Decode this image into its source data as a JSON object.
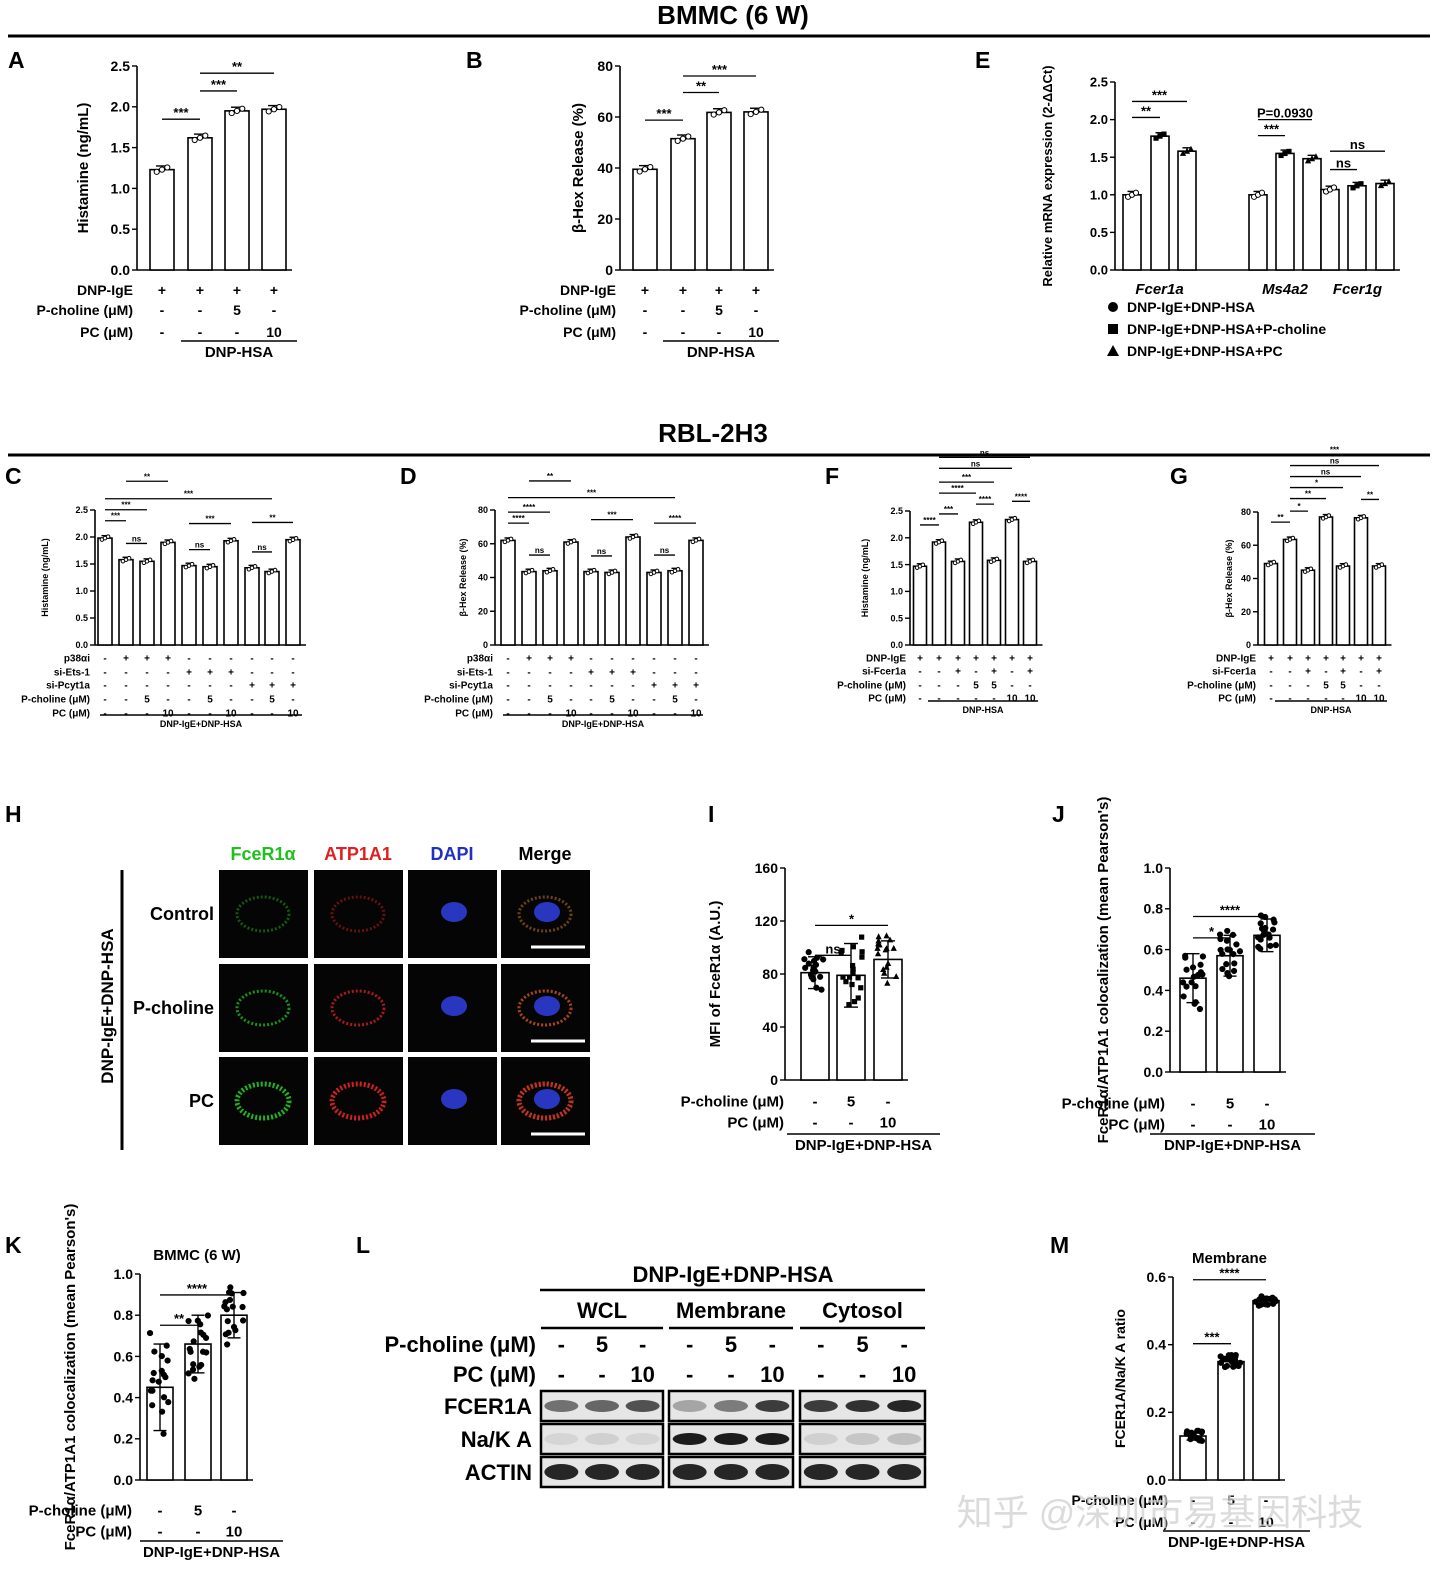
{
  "headers": {
    "bmmc": "BMMC (6 W)",
    "rbl": "RBL-2H3"
  },
  "panel_letters": [
    "A",
    "B",
    "E",
    "C",
    "D",
    "F",
    "G",
    "H",
    "I",
    "J",
    "K",
    "L",
    "M"
  ],
  "watermark": "知乎 @深圳市易基因科技",
  "colors": {
    "green": "#20c020",
    "red": "#e02020",
    "blue": "#2030c0",
    "black": "#000000",
    "bar_fill": "#ffffff"
  },
  "legend_e": {
    "items": [
      {
        "marker": "circle",
        "label": "DNP-IgE+DNP-HSA"
      },
      {
        "marker": "square",
        "label": "DNP-IgE+DNP-HSA+P-choline"
      },
      {
        "marker": "triangle",
        "label": "DNP-IgE+DNP-HSA+PC"
      }
    ]
  },
  "micro": {
    "columns": [
      "FceR1α",
      "ATP1A1",
      "DAPI",
      "Merge"
    ],
    "column_colors": [
      "#20c020",
      "#e02020",
      "#2030c0",
      "#000000"
    ],
    "rows": [
      "Control",
      "P-choline",
      "PC"
    ],
    "side_label": "DNP-IgE+DNP-HSA"
  },
  "blot": {
    "top": "DNP-IgE+DNP-HSA",
    "groups": [
      "WCL",
      "Membrane",
      "Cytosol"
    ],
    "pcholine_label": "P-choline (μM)",
    "pc_label": "PC (μM)",
    "pcholine": [
      "-",
      "5",
      "-"
    ],
    "pc": [
      "-",
      "-",
      "10"
    ],
    "bands": [
      "FCER1A",
      "Na/K A",
      "ACTIN"
    ]
  },
  "chart_data": [
    {
      "id": "A",
      "type": "bar",
      "ylabel": "Histamine (ng/mL)",
      "ylim": [
        0,
        2.5
      ],
      "ticks": [
        "0.0",
        "0.5",
        "1.0",
        "1.5",
        "2.0",
        "2.5"
      ],
      "values": [
        1.23,
        1.62,
        1.95,
        1.97
      ],
      "rows": [
        {
          "label": "DNP-IgE",
          "cells": [
            "+",
            "+",
            "+",
            "+"
          ]
        },
        {
          "label": "P-choline (μM)",
          "cells": [
            "-",
            "-",
            "5",
            "-"
          ]
        },
        {
          "label": "PC (μM)",
          "cells": [
            "-",
            "-",
            "-",
            "10"
          ]
        }
      ],
      "group_label": "DNP-HSA",
      "sig": [
        {
          "label": "***",
          "from": 0,
          "to": 1
        },
        {
          "label": "***",
          "from": 1,
          "to": 2
        },
        {
          "label": "**",
          "from": 1,
          "to": 3
        }
      ]
    },
    {
      "id": "B",
      "type": "bar",
      "ylabel": "β-Hex Release (%)",
      "ylim": [
        0,
        80
      ],
      "ticks": [
        "0",
        "20",
        "40",
        "60",
        "80"
      ],
      "values": [
        39.5,
        51.5,
        61.8,
        62.0
      ],
      "rows": [
        {
          "label": "DNP-IgE",
          "cells": [
            "+",
            "+",
            "+",
            "+"
          ]
        },
        {
          "label": "P-choline (μM)",
          "cells": [
            "-",
            "-",
            "5",
            "-"
          ]
        },
        {
          "label": "PC (μM)",
          "cells": [
            "-",
            "-",
            "-",
            "10"
          ]
        }
      ],
      "group_label": "DNP-HSA",
      "sig": [
        {
          "label": "***",
          "from": 0,
          "to": 1
        },
        {
          "label": "**",
          "from": 1,
          "to": 2
        },
        {
          "label": "***",
          "from": 1,
          "to": 3
        }
      ]
    },
    {
      "id": "E",
      "type": "bar",
      "ylabel": "Relative mRNA expression (2-ΔΔCt)",
      "ylim": [
        0,
        2.5
      ],
      "ticks": [
        "0.0",
        "0.5",
        "1.0",
        "1.5",
        "2.0",
        "2.5"
      ],
      "categories": [
        "Fcer1a",
        "Ms4a2",
        "Fcer1g"
      ],
      "series": [
        {
          "name": "DNP-IgE+DNP-HSA",
          "values": [
            1.0,
            1.0,
            1.07
          ]
        },
        {
          "name": "DNP-IgE+DNP-HSA+P-choline",
          "values": [
            1.78,
            1.55,
            1.12
          ]
        },
        {
          "name": "DNP-IgE+DNP-HSA+PC",
          "values": [
            1.58,
            1.48,
            1.15
          ]
        }
      ],
      "sig": [
        {
          "label": "**",
          "from": 0,
          "to": 1
        },
        {
          "label": "***",
          "from": 0,
          "to": 2
        },
        {
          "label": "***",
          "from": 3,
          "to": 4
        },
        {
          "label": "P=0.0930",
          "from": 3,
          "to": 5
        },
        {
          "label": "ns",
          "from": 6,
          "to": 7
        },
        {
          "label": "ns",
          "from": 6,
          "to": 8
        }
      ]
    },
    {
      "id": "C",
      "type": "bar",
      "ylabel": "Histamine (ng/mL)",
      "ylim": [
        0,
        2.5
      ],
      "ticks": [
        "0.0",
        "0.5",
        "1.0",
        "1.5",
        "2.0",
        "2.5"
      ],
      "values": [
        1.98,
        1.58,
        1.55,
        1.9,
        1.47,
        1.45,
        1.93,
        1.43,
        1.36,
        1.95
      ],
      "rows": [
        {
          "label": "p38αi",
          "cells": [
            "-",
            "+",
            "+",
            "+",
            "-",
            "-",
            "-",
            "-",
            "-",
            "-"
          ]
        },
        {
          "label": "si-Ets-1",
          "cells": [
            "-",
            "-",
            "-",
            "-",
            "+",
            "+",
            "+",
            "-",
            "-",
            "-"
          ]
        },
        {
          "label": "si-Pcyt1a",
          "cells": [
            "-",
            "-",
            "-",
            "-",
            "-",
            "-",
            "-",
            "+",
            "+",
            "+"
          ]
        },
        {
          "label": "P-choline (μM)",
          "cells": [
            "-",
            "-",
            "5",
            "-",
            "-",
            "5",
            "-",
            "-",
            "5",
            "-"
          ]
        },
        {
          "label": "PC (μM)",
          "cells": [
            "-",
            "-",
            "-",
            "10",
            "-",
            "-",
            "10",
            "-",
            "-",
            "10"
          ]
        }
      ],
      "group_label": "DNP-IgE+DNP-HSA",
      "sig": [
        {
          "label": "***",
          "from": 0,
          "to": 1
        },
        {
          "label": "***",
          "from": 0,
          "to": 2
        },
        {
          "label": "***",
          "from": 0,
          "to": 8
        },
        {
          "label": "**",
          "from": 1,
          "to": 3
        },
        {
          "label": "ns",
          "from": 1,
          "to": 2
        },
        {
          "label": "***",
          "from": 4,
          "to": 6
        },
        {
          "label": "ns",
          "from": 4,
          "to": 5
        },
        {
          "label": "**",
          "from": 7,
          "to": 9
        },
        {
          "label": "ns",
          "from": 7,
          "to": 8
        }
      ]
    },
    {
      "id": "D",
      "type": "bar",
      "ylabel": "β-Hex Release (%)",
      "ylim": [
        0,
        80
      ],
      "ticks": [
        "0",
        "20",
        "40",
        "60",
        "80"
      ],
      "values": [
        62,
        43.5,
        44,
        61,
        43.5,
        43,
        64,
        43,
        44,
        62
      ],
      "rows": [
        {
          "label": "p38αi",
          "cells": [
            "-",
            "+",
            "+",
            "+",
            "-",
            "-",
            "-",
            "-",
            "-",
            "-"
          ]
        },
        {
          "label": "si-Ets-1",
          "cells": [
            "-",
            "-",
            "-",
            "-",
            "+",
            "+",
            "+",
            "-",
            "-",
            "-"
          ]
        },
        {
          "label": "si-Pcyt1a",
          "cells": [
            "-",
            "-",
            "-",
            "-",
            "-",
            "-",
            "-",
            "+",
            "+",
            "+"
          ]
        },
        {
          "label": "P-choline (μM)",
          "cells": [
            "-",
            "-",
            "5",
            "-",
            "-",
            "5",
            "-",
            "-",
            "5",
            "-"
          ]
        },
        {
          "label": "PC (μM)",
          "cells": [
            "-",
            "-",
            "-",
            "10",
            "-",
            "-",
            "10",
            "-",
            "-",
            "10"
          ]
        }
      ],
      "group_label": "DNP-IgE+DNP-HSA",
      "sig": [
        {
          "label": "****",
          "from": 0,
          "to": 1
        },
        {
          "label": "****",
          "from": 0,
          "to": 2
        },
        {
          "label": "***",
          "from": 0,
          "to": 8
        },
        {
          "label": "**",
          "from": 1,
          "to": 3
        },
        {
          "label": "ns",
          "from": 1,
          "to": 2
        },
        {
          "label": "***",
          "from": 4,
          "to": 6
        },
        {
          "label": "ns",
          "from": 4,
          "to": 5
        },
        {
          "label": "****",
          "from": 7,
          "to": 9
        },
        {
          "label": "ns",
          "from": 7,
          "to": 8
        }
      ]
    },
    {
      "id": "F",
      "type": "bar",
      "ylabel": "Histamine (ng/mL)",
      "ylim": [
        0,
        2.5
      ],
      "ticks": [
        "0.0",
        "0.5",
        "1.0",
        "1.5",
        "2.0",
        "2.5"
      ],
      "values": [
        1.47,
        1.92,
        1.56,
        2.29,
        1.58,
        2.34,
        1.56
      ],
      "rows": [
        {
          "label": "DNP-IgE",
          "cells": [
            "+",
            "+",
            "+",
            "+",
            "+",
            "+",
            "+"
          ]
        },
        {
          "label": "si-Fcer1a",
          "cells": [
            "-",
            "-",
            "+",
            "-",
            "+",
            "-",
            "+"
          ]
        },
        {
          "label": "P-choline (μM)",
          "cells": [
            "-",
            "-",
            "-",
            "5",
            "5",
            "-",
            "-"
          ]
        },
        {
          "label": "PC (μM)",
          "cells": [
            "-",
            "-",
            "-",
            "-",
            "-",
            "10",
            "10"
          ]
        }
      ],
      "group_label": "DNP-HSA",
      "sig": [
        {
          "label": "****",
          "from": 0,
          "to": 1
        },
        {
          "label": "***",
          "from": 1,
          "to": 2
        },
        {
          "label": "****",
          "from": 1,
          "to": 3
        },
        {
          "label": "***",
          "from": 1,
          "to": 4
        },
        {
          "label": "ns",
          "from": 1,
          "to": 5
        },
        {
          "label": "ns",
          "from": 1,
          "to": 6
        },
        {
          "label": "****",
          "from": 3,
          "to": 4
        },
        {
          "label": "****",
          "from": 5,
          "to": 6
        }
      ]
    },
    {
      "id": "G",
      "type": "bar",
      "ylabel": "β-Hex Release (%)",
      "ylim": [
        0,
        80
      ],
      "ticks": [
        "0",
        "20",
        "40",
        "60",
        "80"
      ],
      "values": [
        49,
        63.5,
        45,
        77,
        47.5,
        76.5,
        47.5
      ],
      "rows": [
        {
          "label": "DNP-IgE",
          "cells": [
            "+",
            "+",
            "+",
            "+",
            "+",
            "+",
            "+"
          ]
        },
        {
          "label": "si-Fcer1a",
          "cells": [
            "-",
            "-",
            "+",
            "-",
            "+",
            "-",
            "+"
          ]
        },
        {
          "label": "P-choline (μM)",
          "cells": [
            "-",
            "-",
            "-",
            "5",
            "5",
            "-",
            "-"
          ]
        },
        {
          "label": "PC (μM)",
          "cells": [
            "-",
            "-",
            "-",
            "-",
            "-",
            "10",
            "10"
          ]
        }
      ],
      "group_label": "DNP-HSA",
      "sig": [
        {
          "label": "**",
          "from": 0,
          "to": 1
        },
        {
          "label": "*",
          "from": 1,
          "to": 2
        },
        {
          "label": "**",
          "from": 1,
          "to": 3
        },
        {
          "label": "*",
          "from": 1,
          "to": 4
        },
        {
          "label": "ns",
          "from": 1,
          "to": 5
        },
        {
          "label": "ns",
          "from": 1,
          "to": 6
        },
        {
          "label": "***",
          "from": 3,
          "to": 4
        },
        {
          "label": "**",
          "from": 5,
          "to": 6
        }
      ]
    },
    {
      "id": "I",
      "type": "bar",
      "ylabel": "MFI of FceR1α (A.U.)",
      "ylim": [
        0,
        160
      ],
      "ticks": [
        "0",
        "40",
        "80",
        "120",
        "160"
      ],
      "values": [
        81,
        79,
        91
      ],
      "sd": [
        12,
        24,
        14
      ],
      "rows": [
        {
          "label": "P-choline (μM)",
          "cells": [
            "-",
            "5",
            "-"
          ]
        },
        {
          "label": "PC (μM)",
          "cells": [
            "-",
            "-",
            "10"
          ]
        }
      ],
      "group_label": "DNP-IgE+DNP-HSA",
      "sig": [
        {
          "label": "ns",
          "from": 0,
          "to": 1
        },
        {
          "label": "*",
          "from": 0,
          "to": 2
        }
      ]
    },
    {
      "id": "J",
      "type": "bar",
      "ylabel": "FceR1α/ATP1A1 colocalization (mean Pearson's)",
      "ylim": [
        0,
        1.0
      ],
      "ticks": [
        "0.0",
        "0.2",
        "0.4",
        "0.6",
        "0.8",
        "1.0"
      ],
      "values": [
        0.46,
        0.57,
        0.67
      ],
      "sd": [
        0.12,
        0.1,
        0.08
      ],
      "rows": [
        {
          "label": "P-choline (μM)",
          "cells": [
            "-",
            "5",
            "-"
          ]
        },
        {
          "label": "PC (μM)",
          "cells": [
            "-",
            "-",
            "10"
          ]
        }
      ],
      "group_label": "DNP-IgE+DNP-HSA",
      "sig": [
        {
          "label": "*",
          "from": 0,
          "to": 1
        },
        {
          "label": "****",
          "from": 0,
          "to": 2
        }
      ]
    },
    {
      "id": "K",
      "type": "bar",
      "title": "BMMC (6 W)",
      "ylabel": "FceR1α/ATP1A1 colocalization (mean Pearson's)",
      "ylim": [
        0,
        1.0
      ],
      "ticks": [
        "0.0",
        "0.2",
        "0.4",
        "0.6",
        "0.8",
        "1.0"
      ],
      "values": [
        0.45,
        0.66,
        0.8
      ],
      "sd": [
        0.21,
        0.14,
        0.11
      ],
      "rows": [
        {
          "label": "P-choline (μM)",
          "cells": [
            "-",
            "5",
            "-"
          ]
        },
        {
          "label": "PC (μM)",
          "cells": [
            "-",
            "-",
            "10"
          ]
        }
      ],
      "group_label": "DNP-IgE+DNP-HSA",
      "sig": [
        {
          "label": "**",
          "from": 0,
          "to": 1
        },
        {
          "label": "****",
          "from": 0,
          "to": 2
        }
      ]
    },
    {
      "id": "M",
      "type": "bar",
      "title": "Membrane",
      "ylabel": "FCER1A/Na/K A ratio",
      "ylim": [
        0,
        0.6
      ],
      "ticks": [
        "0.0",
        "0.2",
        "0.4",
        "0.6"
      ],
      "values": [
        0.13,
        0.35,
        0.53
      ],
      "sd": [
        0.012,
        0.015,
        0.012
      ],
      "rows": [
        {
          "label": "P-choline (μM)",
          "cells": [
            "-",
            "5",
            "-"
          ]
        },
        {
          "label": "PC (μM)",
          "cells": [
            "-",
            "-",
            "10"
          ]
        }
      ],
      "group_label": "DNP-IgE+DNP-HSA",
      "sig": [
        {
          "label": "***",
          "from": 0,
          "to": 1
        },
        {
          "label": "****",
          "from": 0,
          "to": 2
        }
      ]
    }
  ]
}
